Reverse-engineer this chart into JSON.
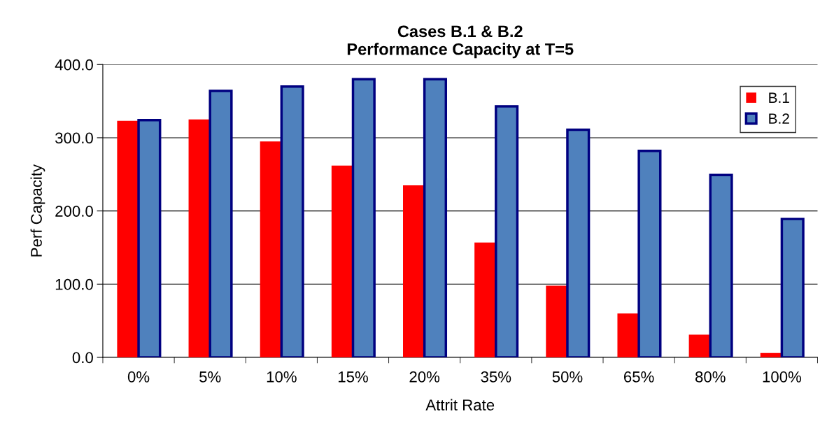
{
  "chart_data": {
    "type": "bar",
    "title": "Cases B.1 & B.2\nPerformance Capacity at T=5",
    "xlabel": "Attrit Rate",
    "ylabel": "Perf Capacity",
    "categories": [
      "0%",
      "5%",
      "10%",
      "15%",
      "20%",
      "35%",
      "50%",
      "65%",
      "80%",
      "100%"
    ],
    "series": [
      {
        "name": "B.1",
        "color": "#ff0000",
        "values": [
          323,
          325,
          295,
          262,
          235,
          157,
          98,
          60,
          31,
          6
        ]
      },
      {
        "name": "B.2",
        "color": "#4f81bd",
        "values": [
          324,
          364,
          370,
          380,
          380,
          343,
          311,
          282,
          249,
          189
        ]
      }
    ],
    "ylim": [
      0,
      400
    ],
    "yticks": [
      {
        "value": 0,
        "label": "0.0"
      },
      {
        "value": 100,
        "label": "100.0"
      },
      {
        "value": 200,
        "label": "200.0"
      },
      {
        "value": 300,
        "label": "300.0"
      },
      {
        "value": 400,
        "label": "400.0"
      }
    ],
    "grid": "y",
    "legend": "top right"
  }
}
